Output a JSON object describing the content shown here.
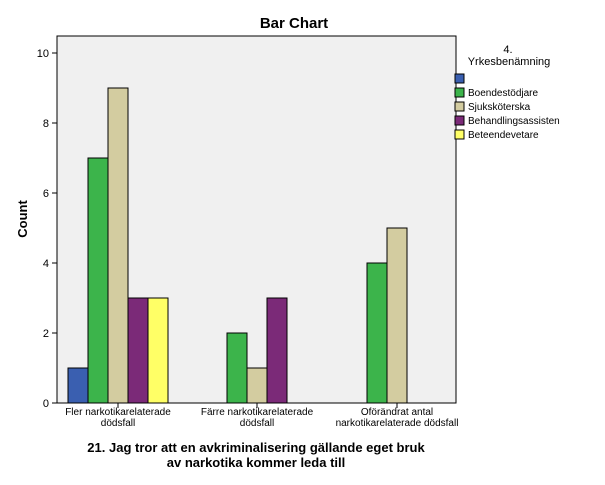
{
  "chart_data": {
    "type": "bar",
    "title": "Bar Chart",
    "xlabel": "21. Jag tror att en avkriminalisering gällande eget bruk av narkotika kommer leda till",
    "xlabel_lines": [
      "21. Jag tror att en avkriminalisering gällande eget bruk",
      "av narkotika kommer leda till"
    ],
    "ylabel": "Count",
    "ylim": [
      0,
      10
    ],
    "yticks": [
      0,
      2,
      4,
      6,
      8,
      10
    ],
    "categories": [
      [
        "Fler narkotikarelaterade",
        "dödsfall"
      ],
      [
        "Färre narkotikarelaterade",
        "dödsfall"
      ],
      [
        "Oförändrat antal",
        "narkotikarelaterade dödsfall"
      ]
    ],
    "legend_title": [
      "4.",
      "Yrkesbenämning"
    ],
    "legend_position": "right",
    "series": [
      {
        "name": "",
        "color": "#3a5fb0",
        "values": [
          1,
          0,
          0
        ]
      },
      {
        "name": "Boendestödjare",
        "color": "#3cb44b",
        "values": [
          7,
          2,
          4
        ]
      },
      {
        "name": "Sjuksköterska",
        "color": "#d3cca0",
        "values": [
          9,
          1,
          5
        ]
      },
      {
        "name": "Behandlingsassisten",
        "color": "#7b2a78",
        "values": [
          3,
          3,
          0
        ]
      },
      {
        "name": "Beteendevetare",
        "color": "#ffff66",
        "values": [
          3,
          0,
          0
        ]
      }
    ],
    "grid": false,
    "plot_background": "#f0f0f0"
  }
}
